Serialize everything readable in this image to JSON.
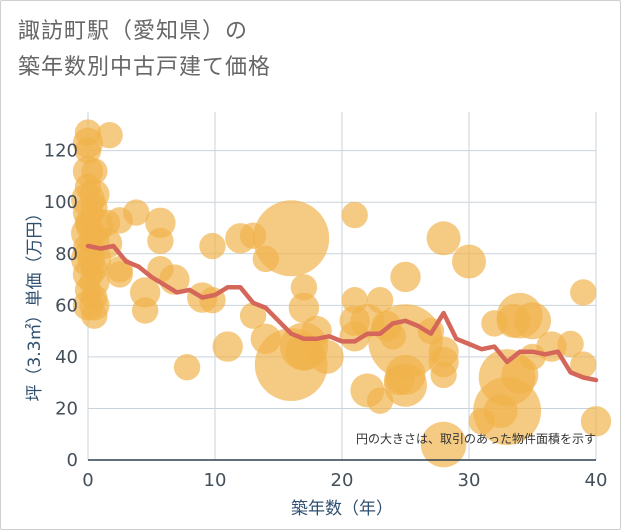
{
  "chart_data": {
    "type": "scatter",
    "title_line1": "諏訪町駅（愛知県）の",
    "title_line2": "築年数別中古戸建て価格",
    "xlabel": "築年数（年）",
    "ylabel": "坪（3.3㎡）単価（万円）",
    "xlim": [
      0,
      40
    ],
    "ylim": [
      0,
      135
    ],
    "xticks": [
      0,
      10,
      20,
      30,
      40
    ],
    "yticks": [
      0,
      20,
      40,
      60,
      80,
      100,
      120
    ],
    "annotation": "円の大きさは、取引のあった物件面積を示す",
    "colors": {
      "bubble": "#f0b24a",
      "line": "#d4665a",
      "grid": "#c9d3dc",
      "plot_bg": "#ffffff"
    },
    "scatter_points": [
      {
        "x": 0,
        "y": 127,
        "s": 3
      },
      {
        "x": 0,
        "y": 123,
        "s": 4
      },
      {
        "x": 0,
        "y": 120,
        "s": 3
      },
      {
        "x": 0,
        "y": 112,
        "s": 4
      },
      {
        "x": 0,
        "y": 106,
        "s": 3
      },
      {
        "x": 0,
        "y": 101,
        "s": 5
      },
      {
        "x": 0,
        "y": 96,
        "s": 4
      },
      {
        "x": 0,
        "y": 92,
        "s": 3
      },
      {
        "x": 0,
        "y": 88,
        "s": 5
      },
      {
        "x": 0,
        "y": 82,
        "s": 4
      },
      {
        "x": 0,
        "y": 78,
        "s": 5
      },
      {
        "x": 0,
        "y": 72,
        "s": 4
      },
      {
        "x": 0,
        "y": 66,
        "s": 3
      },
      {
        "x": 0,
        "y": 60,
        "s": 4
      },
      {
        "x": 0.5,
        "y": 112,
        "s": 3
      },
      {
        "x": 0.5,
        "y": 103,
        "s": 4
      },
      {
        "x": 0.5,
        "y": 98,
        "s": 3
      },
      {
        "x": 0.5,
        "y": 91,
        "s": 6
      },
      {
        "x": 0.5,
        "y": 85,
        "s": 4
      },
      {
        "x": 0.5,
        "y": 78,
        "s": 5
      },
      {
        "x": 0.5,
        "y": 74,
        "s": 3
      },
      {
        "x": 0.5,
        "y": 69,
        "s": 4
      },
      {
        "x": 0.5,
        "y": 63,
        "s": 3
      },
      {
        "x": 0.5,
        "y": 60,
        "s": 4
      },
      {
        "x": 0.5,
        "y": 56,
        "s": 3
      },
      {
        "x": 1.7,
        "y": 126,
        "s": 3
      },
      {
        "x": 1.5,
        "y": 92,
        "s": 3
      },
      {
        "x": 1.5,
        "y": 84,
        "s": 4
      },
      {
        "x": 2.5,
        "y": 93,
        "s": 3
      },
      {
        "x": 2.5,
        "y": 74,
        "s": 3
      },
      {
        "x": 2.5,
        "y": 72,
        "s": 3
      },
      {
        "x": 3.8,
        "y": 96,
        "s": 3
      },
      {
        "x": 4.5,
        "y": 65,
        "s": 4
      },
      {
        "x": 4.5,
        "y": 58,
        "s": 3
      },
      {
        "x": 5.7,
        "y": 92,
        "s": 4
      },
      {
        "x": 5.7,
        "y": 85,
        "s": 3
      },
      {
        "x": 5.7,
        "y": 74,
        "s": 3
      },
      {
        "x": 6.8,
        "y": 70,
        "s": 4
      },
      {
        "x": 7.8,
        "y": 36,
        "s": 3
      },
      {
        "x": 9,
        "y": 63,
        "s": 4
      },
      {
        "x": 9.8,
        "y": 83,
        "s": 3
      },
      {
        "x": 9.8,
        "y": 62,
        "s": 3
      },
      {
        "x": 11,
        "y": 44,
        "s": 4
      },
      {
        "x": 12,
        "y": 86,
        "s": 4
      },
      {
        "x": 13,
        "y": 87,
        "s": 3
      },
      {
        "x": 13,
        "y": 56,
        "s": 3
      },
      {
        "x": 14,
        "y": 78,
        "s": 3
      },
      {
        "x": 14,
        "y": 47,
        "s": 4
      },
      {
        "x": 16,
        "y": 86,
        "s": 25
      },
      {
        "x": 16,
        "y": 37,
        "s": 23
      },
      {
        "x": 17,
        "y": 67,
        "s": 3
      },
      {
        "x": 17,
        "y": 59,
        "s": 4
      },
      {
        "x": 17,
        "y": 44,
        "s": 10
      },
      {
        "x": 17,
        "y": 42,
        "s": 6
      },
      {
        "x": 18,
        "y": 50,
        "s": 4
      },
      {
        "x": 18.8,
        "y": 40,
        "s": 5
      },
      {
        "x": 21,
        "y": 95,
        "s": 3
      },
      {
        "x": 21,
        "y": 62,
        "s": 3
      },
      {
        "x": 21,
        "y": 54,
        "s": 4
      },
      {
        "x": 21,
        "y": 48,
        "s": 4
      },
      {
        "x": 22,
        "y": 54,
        "s": 5
      },
      {
        "x": 22,
        "y": 27,
        "s": 5
      },
      {
        "x": 23,
        "y": 62,
        "s": 3
      },
      {
        "x": 23,
        "y": 23,
        "s": 3
      },
      {
        "x": 23.5,
        "y": 52,
        "s": 4
      },
      {
        "x": 24,
        "y": 48,
        "s": 3
      },
      {
        "x": 24.5,
        "y": 31,
        "s": 4
      },
      {
        "x": 25,
        "y": 71,
        "s": 4
      },
      {
        "x": 25,
        "y": 46,
        "s": 24
      },
      {
        "x": 25,
        "y": 33,
        "s": 7
      },
      {
        "x": 25,
        "y": 29,
        "s": 8
      },
      {
        "x": 27,
        "y": 50,
        "s": 3
      },
      {
        "x": 28,
        "y": 86,
        "s": 5
      },
      {
        "x": 28,
        "y": 42,
        "s": 4
      },
      {
        "x": 28,
        "y": 38,
        "s": 4
      },
      {
        "x": 28,
        "y": 33,
        "s": 3
      },
      {
        "x": 28,
        "y": 6,
        "s": 9
      },
      {
        "x": 30,
        "y": 77,
        "s": 5
      },
      {
        "x": 31,
        "y": 15,
        "s": 3
      },
      {
        "x": 32,
        "y": 53,
        "s": 3
      },
      {
        "x": 32.5,
        "y": 19,
        "s": 5
      },
      {
        "x": 33,
        "y": 19,
        "s": 20
      },
      {
        "x": 33,
        "y": 32,
        "s": 14
      },
      {
        "x": 33.5,
        "y": 54,
        "s": 5
      },
      {
        "x": 34,
        "y": 56,
        "s": 9
      },
      {
        "x": 34,
        "y": 33,
        "s": 6
      },
      {
        "x": 35,
        "y": 54,
        "s": 6
      },
      {
        "x": 35,
        "y": 40,
        "s": 3
      },
      {
        "x": 36.5,
        "y": 44,
        "s": 4
      },
      {
        "x": 38,
        "y": 45,
        "s": 3
      },
      {
        "x": 39,
        "y": 65,
        "s": 3
      },
      {
        "x": 39,
        "y": 37,
        "s": 3
      },
      {
        "x": 40,
        "y": 15,
        "s": 4
      }
    ],
    "trend_line": {
      "x": [
        0,
        1,
        2,
        3,
        4,
        5,
        6,
        7,
        8,
        9,
        10,
        11,
        12,
        13,
        14,
        15,
        16,
        17,
        18,
        19,
        20,
        21,
        22,
        23,
        24,
        25,
        26,
        27,
        28,
        29,
        30,
        31,
        32,
        33,
        34,
        35,
        36,
        37,
        38,
        39,
        40
      ],
      "y": [
        83,
        82,
        83,
        77,
        75,
        71,
        68,
        65,
        66,
        63,
        64,
        67,
        67,
        61,
        59,
        54,
        49,
        47,
        47,
        48,
        46,
        46,
        49,
        49,
        53,
        54,
        52,
        49,
        57,
        47,
        45,
        43,
        44,
        38,
        42,
        42,
        41,
        42,
        34,
        32,
        31
      ]
    }
  }
}
